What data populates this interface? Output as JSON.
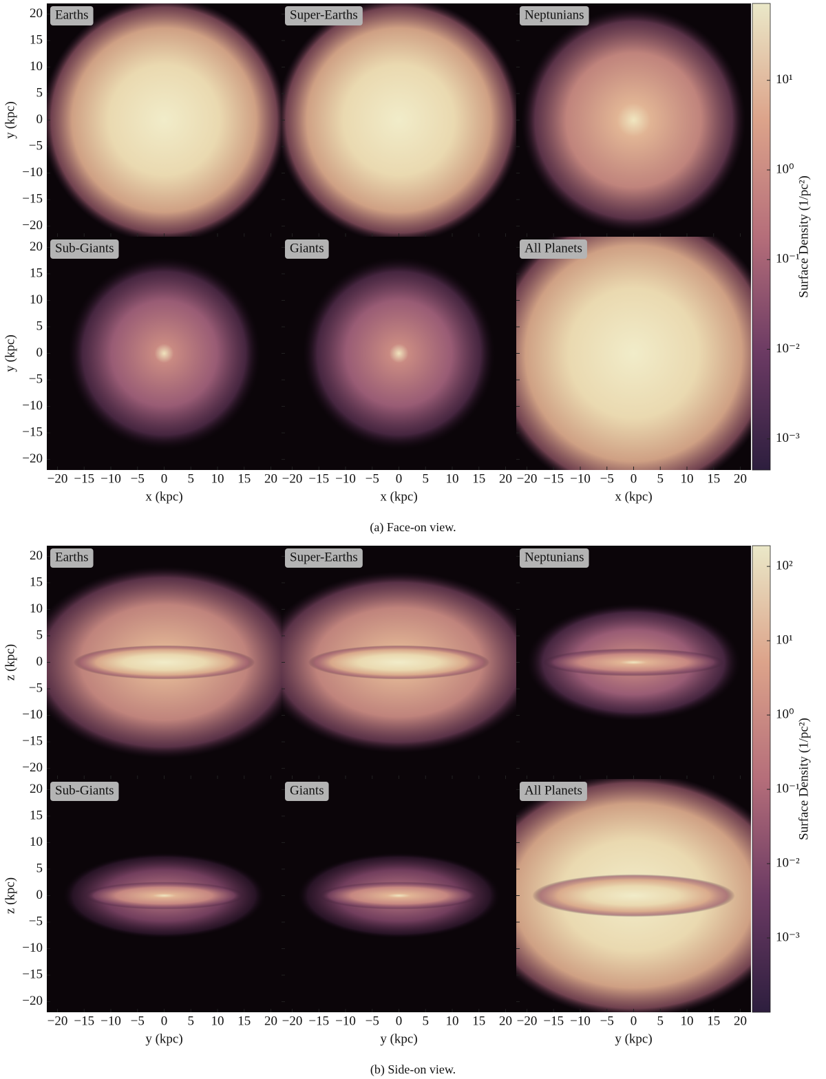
{
  "chart_data": [
    {
      "type": "heatmap",
      "caption": "(a) Face-on view.",
      "panels": [
        "Earths",
        "Super-Earths",
        "Neptunians",
        "Sub-Giants",
        "Giants",
        "All Planets"
      ],
      "xlabel": "x  (kpc)",
      "ylabel": "y  (kpc)",
      "xlim": [
        -22,
        22
      ],
      "ylim": [
        -22,
        22
      ],
      "xticks": [
        {
          "value": -20,
          "label": "−20"
        },
        {
          "value": -15,
          "label": "−15"
        },
        {
          "value": -10,
          "label": "−10"
        },
        {
          "value": -5,
          "label": "−5"
        },
        0,
        5,
        10,
        15,
        20
      ],
      "yticks": [
        {
          "value": -20,
          "label": "−20"
        },
        {
          "value": -15,
          "label": "−15"
        },
        {
          "value": -10,
          "label": "−10"
        },
        {
          "value": -5,
          "label": "−5"
        },
        0,
        5,
        10,
        15,
        20
      ],
      "colorbar": {
        "label": "Surface Density (1/pc²)",
        "log": true,
        "lim": [
          0.00045,
          72
        ],
        "colormap": [
          "#2d1e3e",
          "#6b3a63",
          "#b56e7a",
          "#dca38a",
          "#eae8c8"
        ],
        "ticks": [
          {
            "value": 0.001,
            "label": "10⁻³"
          },
          {
            "value": 0.01,
            "label": "10⁻²"
          },
          {
            "value": 0.1,
            "label": "10⁻¹"
          },
          {
            "value": 1,
            "label": "10⁰"
          },
          {
            "value": 10,
            "label": "10¹"
          }
        ]
      }
    },
    {
      "type": "heatmap",
      "caption": "(b) Side-on view.",
      "panels": [
        "Earths",
        "Super-Earths",
        "Neptunians",
        "Sub-Giants",
        "Giants",
        "All Planets"
      ],
      "xlabel": "y  (kpc)",
      "ylabel": "z  (kpc)",
      "xlim": [
        -22,
        22
      ],
      "ylim": [
        -22,
        22
      ],
      "xticks": [
        {
          "value": -20,
          "label": "−20"
        },
        {
          "value": -15,
          "label": "−15"
        },
        {
          "value": -10,
          "label": "−10"
        },
        {
          "value": -5,
          "label": "−5"
        },
        0,
        5,
        10,
        15,
        20
      ],
      "yticks": [
        {
          "value": -20,
          "label": "−20"
        },
        {
          "value": -15,
          "label": "−15"
        },
        {
          "value": -10,
          "label": "−10"
        },
        {
          "value": -5,
          "label": "−5"
        },
        0,
        5,
        10,
        15,
        20
      ],
      "colorbar": {
        "label": "Surface Density (1/pc²)",
        "log": true,
        "lim": [
          0.0001,
          190
        ],
        "colormap": [
          "#2d1e3e",
          "#6b3a63",
          "#b56e7a",
          "#dca38a",
          "#eae8c8"
        ],
        "ticks": [
          {
            "value": 0.001,
            "label": "10⁻³"
          },
          {
            "value": 0.01,
            "label": "10⁻²"
          },
          {
            "value": 0.1,
            "label": "10⁻¹"
          },
          {
            "value": 1,
            "label": "10⁰"
          },
          {
            "value": 10,
            "label": "10¹"
          },
          {
            "value": 100,
            "label": "10²"
          }
        ]
      }
    }
  ]
}
